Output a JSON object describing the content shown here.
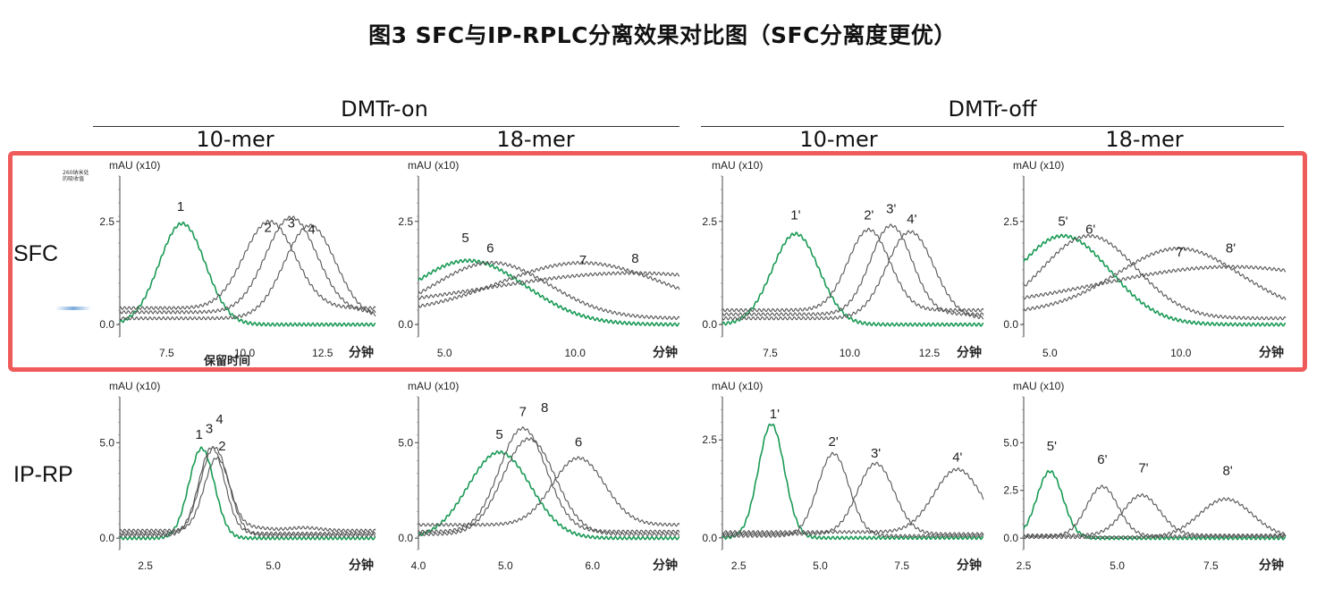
{
  "title": "图3   SFC与IP-RPLC分离效果对比图（SFC分离度更优）",
  "groups": [
    "DMTr-on",
    "DMTr-off"
  ],
  "columns": [
    "10-mer",
    "18-mer",
    "10-mer",
    "18-mer"
  ],
  "rows": [
    "SFC",
    "IP-RP"
  ],
  "ylabel_side": "260纳米处的吸收值",
  "xlabel_first": "保留时间",
  "x_unit": "分钟",
  "y_unit": "mAU (x10)",
  "colors": {
    "highlight": "#ef5a5a",
    "first_peak": "#1a9a55",
    "trace": "#555555"
  },
  "chart_data": [
    {
      "type": "line",
      "id": "sfc-on-10",
      "row": "SFC",
      "column": "10-mer",
      "group": "DMTr-on",
      "x_range": [
        6.0,
        14.2
      ],
      "ylim": [
        -0.3,
        3.6
      ],
      "xticks": [
        "7.5",
        "10.0",
        "12.5"
      ],
      "yticks": [
        "0.0",
        "2.5"
      ],
      "x_unit_text": "分钟",
      "series": [
        {
          "color": "#1a9a55",
          "baseline": 0.0,
          "peaks": [
            {
              "x": 8.0,
              "h": 2.45,
              "w": 0.09
            }
          ],
          "label": "1"
        },
        {
          "color": "#555555",
          "baseline": 0.4,
          "peaks": [
            {
              "x": 10.8,
              "h": 2.1,
              "w": 0.1
            }
          ],
          "label": "2"
        },
        {
          "color": "#555555",
          "baseline": 0.3,
          "peaks": [
            {
              "x": 11.5,
              "h": 2.3,
              "w": 0.1
            }
          ],
          "label": "3"
        },
        {
          "color": "#555555",
          "baseline": 0.15,
          "peaks": [
            {
              "x": 12.1,
              "h": 2.25,
              "w": 0.1
            }
          ],
          "label": "4"
        }
      ],
      "peak_labels": [
        {
          "text": "1",
          "x": 7.95,
          "y": 2.75
        },
        {
          "text": "2",
          "x": 10.75,
          "y": 2.25
        },
        {
          "text": "3",
          "x": 11.5,
          "y": 2.35
        },
        {
          "text": "4",
          "x": 12.15,
          "y": 2.2
        }
      ]
    },
    {
      "type": "line",
      "id": "sfc-on-18",
      "row": "SFC",
      "column": "18-mer",
      "group": "DMTr-on",
      "x_range": [
        4.0,
        14.0
      ],
      "ylim": [
        -0.3,
        3.6
      ],
      "xticks": [
        "5.0",
        "10.0"
      ],
      "yticks": [
        "0.0",
        "2.5"
      ],
      "x_unit_text": "分钟",
      "series": [
        {
          "color": "#1a9a55",
          "baseline": 0.0,
          "peaks": [
            {
              "x": 5.9,
              "h": 1.55,
              "w": 0.22
            }
          ],
          "label": "5"
        },
        {
          "color": "#555555",
          "baseline": 0.15,
          "peaks": [
            {
              "x": 6.8,
              "h": 1.35,
              "w": 0.22
            }
          ],
          "label": "6"
        },
        {
          "color": "#555555",
          "baseline": 0.25,
          "peaks": [
            {
              "x": 9.9,
              "h": 0.45,
              "w": 0.35
            },
            {
              "x": 10.4,
              "h": 0.8,
              "w": 0.3
            }
          ],
          "label": "7"
        },
        {
          "color": "#555555",
          "baseline": 0.35,
          "peaks": [
            {
              "x": 12.2,
              "h": 0.9,
              "w": 0.55
            }
          ],
          "label": "8"
        }
      ],
      "peak_labels": [
        {
          "text": "5",
          "x": 5.8,
          "y": 2.0
        },
        {
          "text": "6",
          "x": 6.75,
          "y": 1.75
        },
        {
          "text": "7",
          "x": 10.3,
          "y": 1.45
        },
        {
          "text": "8",
          "x": 12.3,
          "y": 1.5
        }
      ]
    },
    {
      "type": "line",
      "id": "sfc-off-10",
      "row": "SFC",
      "column": "10-mer",
      "group": "DMTr-off",
      "x_range": [
        6.0,
        14.2
      ],
      "ylim": [
        -0.3,
        3.6
      ],
      "xticks": [
        "7.5",
        "10.0",
        "12.5"
      ],
      "yticks": [
        "0.0",
        "2.5"
      ],
      "x_unit_text": "分钟",
      "series": [
        {
          "color": "#1a9a55",
          "baseline": 0.0,
          "peaks": [
            {
              "x": 8.3,
              "h": 2.2,
              "w": 0.09
            }
          ],
          "label": "1'"
        },
        {
          "color": "#555555",
          "baseline": 0.35,
          "peaks": [
            {
              "x": 10.6,
              "h": 1.95,
              "w": 0.08
            }
          ],
          "label": "2'"
        },
        {
          "color": "#555555",
          "baseline": 0.25,
          "peaks": [
            {
              "x": 11.3,
              "h": 2.15,
              "w": 0.08
            }
          ],
          "label": "3'"
        },
        {
          "color": "#555555",
          "baseline": 0.15,
          "peaks": [
            {
              "x": 11.9,
              "h": 2.1,
              "w": 0.09
            }
          ],
          "label": "4'"
        }
      ],
      "peak_labels": [
        {
          "text": "1'",
          "x": 8.3,
          "y": 2.55
        },
        {
          "text": "2'",
          "x": 10.6,
          "y": 2.55
        },
        {
          "text": "3'",
          "x": 11.3,
          "y": 2.7
        },
        {
          "text": "4'",
          "x": 11.95,
          "y": 2.45
        }
      ]
    },
    {
      "type": "line",
      "id": "sfc-off-18",
      "row": "SFC",
      "column": "18-mer",
      "group": "DMTr-off",
      "x_range": [
        4.0,
        14.0
      ],
      "ylim": [
        -0.3,
        3.6
      ],
      "xticks": [
        "5.0",
        "10.0"
      ],
      "yticks": [
        "0.0",
        "2.5"
      ],
      "x_unit_text": "分钟",
      "series": [
        {
          "color": "#1a9a55",
          "baseline": 0.0,
          "peaks": [
            {
              "x": 5.5,
              "h": 2.15,
              "w": 0.18
            }
          ],
          "label": "5'"
        },
        {
          "color": "#555555",
          "baseline": 0.15,
          "peaks": [
            {
              "x": 6.5,
              "h": 2.0,
              "w": 0.18
            }
          ],
          "label": "6'"
        },
        {
          "color": "#555555",
          "baseline": 0.25,
          "peaks": [
            {
              "x": 9.5,
              "h": 0.45,
              "w": 0.3
            },
            {
              "x": 10.0,
              "h": 1.15,
              "w": 0.22
            }
          ],
          "label": "7'"
        },
        {
          "color": "#555555",
          "baseline": 0.35,
          "peaks": [
            {
              "x": 11.9,
              "h": 1.05,
              "w": 0.5
            }
          ],
          "label": "8'"
        }
      ],
      "peak_labels": [
        {
          "text": "5'",
          "x": 5.5,
          "y": 2.4
        },
        {
          "text": "6'",
          "x": 6.55,
          "y": 2.2
        },
        {
          "text": "7'",
          "x": 10.0,
          "y": 1.65
        },
        {
          "text": "8'",
          "x": 11.9,
          "y": 1.75
        }
      ]
    },
    {
      "type": "line",
      "id": "iprp-on-10",
      "row": "IP-RP",
      "column": "10-mer",
      "group": "DMTr-on",
      "x_range": [
        2.0,
        7.0
      ],
      "ylim": [
        -0.6,
        7.4
      ],
      "xticks": [
        "2.5",
        "5.0"
      ],
      "yticks": [
        "0.0",
        "5.0"
      ],
      "x_unit_text": "分钟",
      "series": [
        {
          "color": "#1a9a55",
          "baseline": 0.0,
          "peaks": [
            {
              "x": 3.6,
              "h": 4.7,
              "w": 0.05
            }
          ],
          "label": "1"
        },
        {
          "color": "#555555",
          "baseline": 0.4,
          "peaks": [
            {
              "x": 3.9,
              "h": 3.8,
              "w": 0.05
            },
            {
              "x": 4.6,
              "h": 0.15,
              "w": 0.06
            },
            {
              "x": 5.6,
              "h": 0.15,
              "w": 0.06
            }
          ],
          "label": "2"
        },
        {
          "color": "#555555",
          "baseline": 0.25,
          "peaks": [
            {
              "x": 3.8,
              "h": 4.5,
              "w": 0.05
            }
          ],
          "label": "3"
        },
        {
          "color": "#555555",
          "baseline": 0.15,
          "peaks": [
            {
              "x": 3.85,
              "h": 4.6,
              "w": 0.055
            }
          ],
          "label": "4"
        }
      ],
      "peak_labels": [
        {
          "text": "1",
          "x": 3.55,
          "y": 5.2
        },
        {
          "text": "3",
          "x": 3.75,
          "y": 5.5
        },
        {
          "text": "4",
          "x": 3.95,
          "y": 6.0
        },
        {
          "text": "2",
          "x": 4.0,
          "y": 4.6
        }
      ]
    },
    {
      "type": "line",
      "id": "iprp-on-18",
      "row": "IP-RP",
      "column": "18-mer",
      "group": "DMTr-on",
      "x_range": [
        4.0,
        7.0
      ],
      "ylim": [
        -0.6,
        7.4
      ],
      "xticks": [
        "4.0",
        "5.0",
        "6.0"
      ],
      "yticks": [
        "0.0",
        "5.0"
      ],
      "x_unit_text": "分钟",
      "series": [
        {
          "color": "#1a9a55",
          "baseline": 0.0,
          "peaks": [
            {
              "x": 4.93,
              "h": 4.5,
              "w": 0.12
            }
          ],
          "label": "5"
        },
        {
          "color": "#555555",
          "baseline": 0.7,
          "peaks": [
            {
              "x": 5.84,
              "h": 3.5,
              "w": 0.1
            }
          ],
          "label": "6"
        },
        {
          "color": "#555555",
          "baseline": 0.35,
          "peaks": [
            {
              "x": 5.2,
              "h": 5.4,
              "w": 0.09
            }
          ],
          "label": "7"
        },
        {
          "color": "#555555",
          "baseline": 0.2,
          "peaks": [
            {
              "x": 5.27,
              "h": 5.0,
              "w": 0.1
            }
          ],
          "label": "8"
        }
      ],
      "peak_labels": [
        {
          "text": "5",
          "x": 4.93,
          "y": 5.2
        },
        {
          "text": "7",
          "x": 5.2,
          "y": 6.4
        },
        {
          "text": "8",
          "x": 5.45,
          "y": 6.6
        },
        {
          "text": "6",
          "x": 5.84,
          "y": 4.8
        }
      ]
    },
    {
      "type": "line",
      "id": "iprp-off-10",
      "row": "IP-RP",
      "column": "10-mer",
      "group": "DMTr-off",
      "x_range": [
        2.0,
        10.0
      ],
      "ylim": [
        -0.3,
        3.6
      ],
      "xticks": [
        "2.5",
        "5.0",
        "7.5"
      ],
      "yticks": [
        "0.0",
        "2.5"
      ],
      "x_unit_text": "分钟",
      "series": [
        {
          "color": "#1a9a55",
          "baseline": 0.0,
          "peaks": [
            {
              "x": 3.5,
              "h": 2.9,
              "w": 0.05
            }
          ],
          "label": "1'"
        },
        {
          "color": "#555555",
          "baseline": 0.05,
          "peaks": [
            {
              "x": 5.4,
              "h": 2.1,
              "w": 0.06
            }
          ],
          "label": "2'"
        },
        {
          "color": "#555555",
          "baseline": 0.1,
          "peaks": [
            {
              "x": 6.7,
              "h": 1.8,
              "w": 0.07
            }
          ],
          "label": "3'"
        },
        {
          "color": "#555555",
          "baseline": 0.15,
          "peaks": [
            {
              "x": 9.2,
              "h": 1.6,
              "w": 0.09
            }
          ],
          "label": "4'"
        }
      ],
      "peak_labels": [
        {
          "text": "1'",
          "x": 3.6,
          "y": 3.05
        },
        {
          "text": "2'",
          "x": 5.4,
          "y": 2.35
        },
        {
          "text": "3'",
          "x": 6.7,
          "y": 2.05
        },
        {
          "text": "4'",
          "x": 9.2,
          "y": 1.95
        }
      ]
    },
    {
      "type": "line",
      "id": "iprp-off-18",
      "row": "IP-RP",
      "column": "18-mer",
      "group": "DMTr-off",
      "x_range": [
        2.5,
        9.5
      ],
      "ylim": [
        -0.6,
        7.4
      ],
      "xticks": [
        "2.5",
        "5.0",
        "7.5"
      ],
      "yticks": [
        "0.0",
        "2.5",
        "5.0"
      ],
      "x_unit_text": "分钟",
      "series": [
        {
          "color": "#1a9a55",
          "baseline": 0.0,
          "peaks": [
            {
              "x": 3.2,
              "h": 3.5,
              "w": 0.05
            }
          ],
          "label": "5'"
        },
        {
          "color": "#555555",
          "baseline": 0.1,
          "peaks": [
            {
              "x": 4.6,
              "h": 2.6,
              "w": 0.06
            }
          ],
          "label": "6'"
        },
        {
          "color": "#555555",
          "baseline": 0.15,
          "peaks": [
            {
              "x": 5.65,
              "h": 2.1,
              "w": 0.07
            }
          ],
          "label": "7'"
        },
        {
          "color": "#555555",
          "baseline": 0.05,
          "peaks": [
            {
              "x": 7.9,
              "h": 2.0,
              "w": 0.1
            }
          ],
          "label": "8'"
        }
      ],
      "peak_labels": [
        {
          "text": "5'",
          "x": 3.25,
          "y": 4.6
        },
        {
          "text": "6'",
          "x": 4.6,
          "y": 3.9
        },
        {
          "text": "7'",
          "x": 5.7,
          "y": 3.45
        },
        {
          "text": "8'",
          "x": 7.95,
          "y": 3.3
        }
      ]
    }
  ]
}
